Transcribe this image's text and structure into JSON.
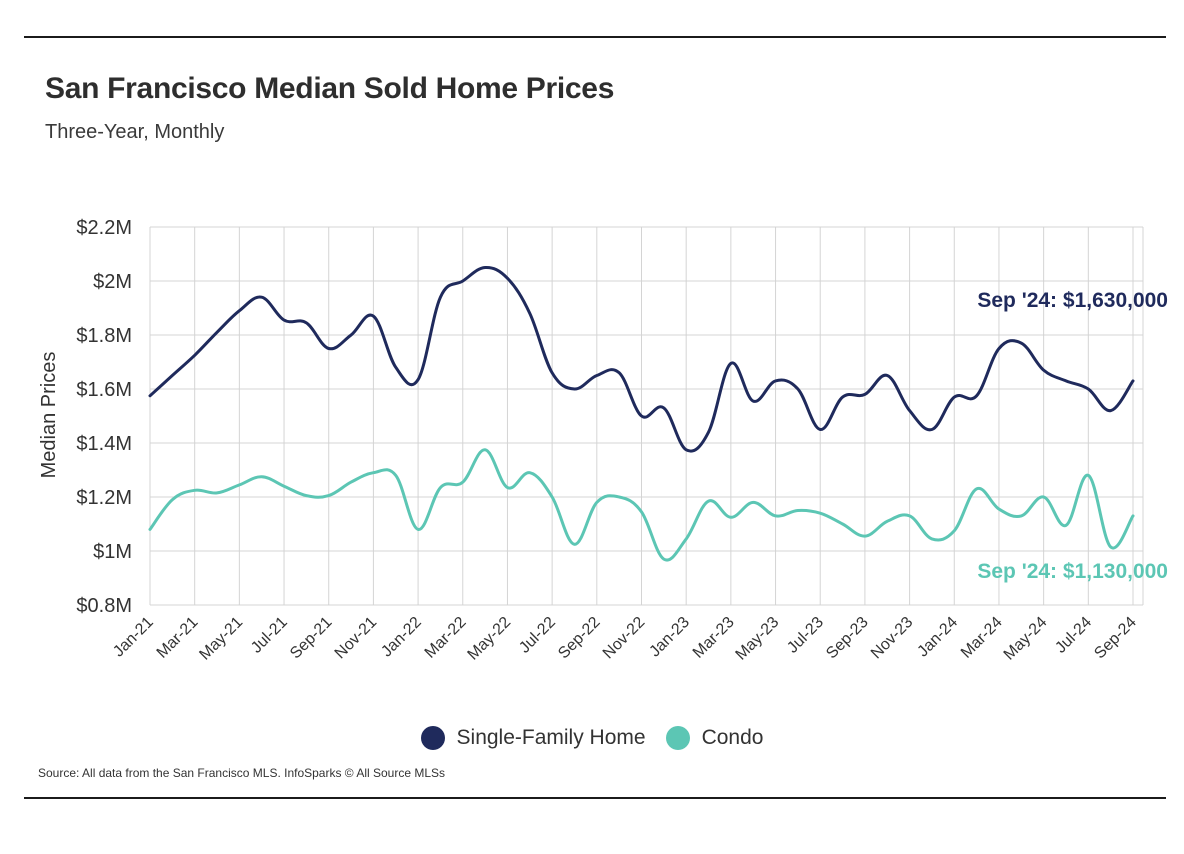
{
  "header": {
    "title": "San Francisco Median Sold Home Prices",
    "subtitle": "Three-Year, Monthly"
  },
  "footer": {
    "source": "Source:  All data from the San Francisco MLS. InfoSparks © All Source MLSs"
  },
  "colors": {
    "single_family": "#1f2a5c",
    "condo": "#5cc6b4",
    "grid": "#d4d4d4"
  },
  "chart_data": {
    "type": "line",
    "title": "San Francisco Median Sold Home Prices",
    "subtitle": "Three-Year, Monthly",
    "xlabel": "",
    "ylabel": "Median Prices",
    "ylim": [
      800000,
      2200000
    ],
    "yticks": [
      {
        "value": 800000,
        "label": "$0.8M"
      },
      {
        "value": 1000000,
        "label": "$1M"
      },
      {
        "value": 1200000,
        "label": "$1.2M"
      },
      {
        "value": 1400000,
        "label": "$1.4M"
      },
      {
        "value": 1600000,
        "label": "$1.6M"
      },
      {
        "value": 1800000,
        "label": "$1.8M"
      },
      {
        "value": 2000000,
        "label": "$2M"
      },
      {
        "value": 2200000,
        "label": "$2.2M"
      }
    ],
    "x": [
      "Jan-21",
      "Feb-21",
      "Mar-21",
      "Apr-21",
      "May-21",
      "Jun-21",
      "Jul-21",
      "Aug-21",
      "Sep-21",
      "Oct-21",
      "Nov-21",
      "Dec-21",
      "Jan-22",
      "Feb-22",
      "Mar-22",
      "Apr-22",
      "May-22",
      "Jun-22",
      "Jul-22",
      "Aug-22",
      "Sep-22",
      "Oct-22",
      "Nov-22",
      "Dec-22",
      "Jan-23",
      "Feb-23",
      "Mar-23",
      "Apr-23",
      "May-23",
      "Jun-23",
      "Jul-23",
      "Aug-23",
      "Sep-23",
      "Oct-23",
      "Nov-23",
      "Dec-23",
      "Jan-24",
      "Feb-24",
      "Mar-24",
      "Apr-24",
      "May-24",
      "Jun-24",
      "Jul-24",
      "Aug-24",
      "Sep-24"
    ],
    "xtick_labels": [
      "Jan-21",
      "Mar-21",
      "May-21",
      "Jul-21",
      "Sep-21",
      "Nov-21",
      "Jan-22",
      "Mar-22",
      "May-22",
      "Jul-22",
      "Sep-22",
      "Nov-22",
      "Jan-23",
      "Mar-23",
      "May-23",
      "Jul-23",
      "Sep-23",
      "Nov-23",
      "Jan-24",
      "Mar-24",
      "May-24",
      "Jul-24",
      "Sep-24"
    ],
    "series": [
      {
        "name": "Single-Family Home",
        "values": [
          1575000,
          1650000,
          1725000,
          1810000,
          1890000,
          1940000,
          1855000,
          1845000,
          1750000,
          1800000,
          1870000,
          1680000,
          1635000,
          1940000,
          2000000,
          2050000,
          2010000,
          1880000,
          1660000,
          1600000,
          1650000,
          1660000,
          1500000,
          1530000,
          1375000,
          1440000,
          1695000,
          1555000,
          1630000,
          1600000,
          1450000,
          1570000,
          1580000,
          1650000,
          1520000,
          1450000,
          1570000,
          1575000,
          1750000,
          1770000,
          1670000,
          1630000,
          1600000,
          1520000,
          1630000
        ]
      },
      {
        "name": "Condo",
        "values": [
          1080000,
          1190000,
          1225000,
          1215000,
          1245000,
          1275000,
          1240000,
          1205000,
          1205000,
          1255000,
          1290000,
          1280000,
          1080000,
          1235000,
          1255000,
          1375000,
          1235000,
          1290000,
          1200000,
          1025000,
          1180000,
          1200000,
          1145000,
          970000,
          1045000,
          1185000,
          1125000,
          1180000,
          1130000,
          1150000,
          1140000,
          1100000,
          1055000,
          1110000,
          1130000,
          1045000,
          1075000,
          1230000,
          1155000,
          1130000,
          1200000,
          1095000,
          1280000,
          1015000,
          1130000
        ]
      }
    ],
    "annotations": [
      {
        "series": "Single-Family Home",
        "text": "Sep '24: $1,630,000"
      },
      {
        "series": "Condo",
        "text": "Sep '24: $1,130,000"
      }
    ],
    "legend": {
      "placement": "bottom-center"
    },
    "grid": true
  }
}
